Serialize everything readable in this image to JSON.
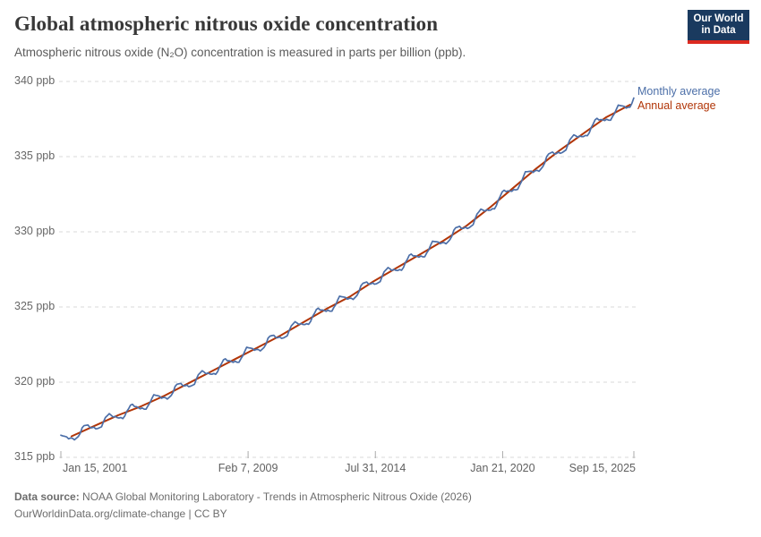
{
  "header": {
    "title": "Global atmospheric nitrous oxide concentration",
    "subtitle": "Atmospheric nitrous oxide (N₂O) concentration is measured in parts per billion (ppb).",
    "logo": {
      "line1": "Our World",
      "line2": "in Data"
    }
  },
  "legend": {
    "items": [
      {
        "label": "Monthly average",
        "color": "#4C6FA8"
      },
      {
        "label": "Annual average",
        "color": "#B13507"
      }
    ]
  },
  "footer": {
    "source_label": "Data source:",
    "source_text": " NOAA Global Monitoring Laboratory - Trends in Atmospheric Nitrous Oxide (2026)",
    "link": "OurWorldinData.org/climate-change",
    "separator": " | ",
    "license": "CC BY"
  },
  "colors": {
    "monthly_blue": "#4C6FA8",
    "annual_red": "#B13507",
    "gridline": "#dadada",
    "tick": "#ababab",
    "logo_bg": "#1a3a5f",
    "logo_bar": "#dc2a20"
  },
  "chart_data": {
    "type": "line",
    "title": "Global atmospheric nitrous oxide concentration",
    "subtitle": "Atmospheric nitrous oxide (N₂O) concentration is measured in parts per billion (ppb).",
    "unit": "ppb",
    "grid": "horizontal-dashed",
    "legend_position": "right-of-line-ends",
    "y_axis": {
      "range": [
        315,
        340
      ],
      "ticks": [
        315,
        320,
        325,
        330,
        335,
        340
      ],
      "suffix": " ppb"
    },
    "x_axis": {
      "domain": [
        2001.04,
        2025.71
      ],
      "ticks": [
        {
          "label": "Jan 15, 2001",
          "t": 2001.04
        },
        {
          "label": "Feb 7, 2009",
          "t": 2009.1
        },
        {
          "label": "Jul 31, 2014",
          "t": 2014.58
        },
        {
          "label": "Jan 21, 2020",
          "t": 2020.06
        },
        {
          "label": "Sep 15, 2025",
          "t": 2025.71
        }
      ]
    },
    "series": [
      {
        "name": "Annual average",
        "type": "annual",
        "color": "#B13507",
        "points_t": [
          2001.5,
          2002.5,
          2003.5,
          2004.5,
          2005.5,
          2006.5,
          2007.5,
          2008.5,
          2009.5,
          2010.5,
          2011.5,
          2012.5,
          2013.5,
          2014.5,
          2015.5,
          2016.5,
          2017.5,
          2018.5,
          2019.5,
          2020.5,
          2021.5,
          2022.5,
          2023.5,
          2024.5,
          2025.55
        ],
        "points_v": [
          316.4,
          317.1,
          317.8,
          318.4,
          319.1,
          319.9,
          320.7,
          321.5,
          322.3,
          323.1,
          324.0,
          324.9,
          325.7,
          326.7,
          327.6,
          328.5,
          329.4,
          330.4,
          331.6,
          332.9,
          334.2,
          335.4,
          336.5,
          337.6,
          338.45
        ]
      },
      {
        "name": "Monthly average",
        "type": "monthly",
        "color": "#4C6FA8",
        "start": 2001.04,
        "end": 2025.75,
        "step_years": 0.08333,
        "seasonal_amplitude": 0.3,
        "start_value": 316.3,
        "end_value": 338.9,
        "note": "monthly values oscillate seasonally (≈±0.3 ppb) around the annual-average trend"
      }
    ]
  }
}
